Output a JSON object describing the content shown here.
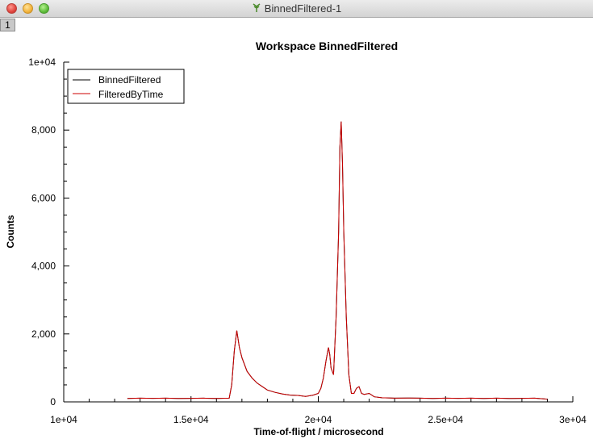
{
  "window": {
    "title": "BinnedFiltered-1",
    "tab_label": "1",
    "icon": "mantid-plot-icon"
  },
  "colors": {
    "binned": "#000000",
    "filtered": "#cc0000"
  },
  "chart_data": {
    "type": "line",
    "title": "Workspace BinnedFiltered",
    "xlabel": "Time-of-flight / microsecond",
    "ylabel": "Counts",
    "xlim": [
      10000,
      30000
    ],
    "ylim": [
      0,
      10000
    ],
    "xticks": [
      {
        "value": 10000,
        "label": "1e+04"
      },
      {
        "value": 15000,
        "label": "1.5e+04"
      },
      {
        "value": 20000,
        "label": "2e+04"
      },
      {
        "value": 25000,
        "label": "2.5e+04"
      },
      {
        "value": 30000,
        "label": "3e+04"
      }
    ],
    "yticks": [
      {
        "value": 0,
        "label": "0"
      },
      {
        "value": 2000,
        "label": "2,000"
      },
      {
        "value": 4000,
        "label": "4,000"
      },
      {
        "value": 6000,
        "label": "6,000"
      },
      {
        "value": 8000,
        "label": "8,000"
      },
      {
        "value": 10000,
        "label": "1e+04"
      }
    ],
    "grid": false,
    "legend": "top-left",
    "series": [
      {
        "name": "BinnedFiltered",
        "color": "#000000",
        "x": [
          12500,
          13000,
          13500,
          14000,
          14500,
          15000,
          15500,
          16000,
          16500,
          16600,
          16700,
          16800,
          16900,
          17000,
          17200,
          17400,
          17600,
          17800,
          18000,
          18300,
          18600,
          18900,
          19200,
          19500,
          19800,
          20000,
          20100,
          20200,
          20300,
          20400,
          20450,
          20500,
          20600,
          20700,
          20800,
          20850,
          20900,
          20950,
          21000,
          21100,
          21200,
          21300,
          21400,
          21500,
          21600,
          21700,
          21800,
          22000,
          22200,
          22500,
          23000,
          23500,
          24000,
          24500,
          25000,
          25500,
          26000,
          26500,
          27000,
          27500,
          28000,
          28500,
          29000
        ],
        "y": [
          100,
          110,
          105,
          110,
          100,
          105,
          110,
          100,
          110,
          500,
          1500,
          2100,
          1600,
          1300,
          900,
          700,
          550,
          450,
          350,
          280,
          230,
          200,
          190,
          160,
          200,
          250,
          400,
          700,
          1200,
          1600,
          1400,
          1000,
          800,
          2500,
          5000,
          7500,
          8250,
          7000,
          5000,
          2500,
          800,
          250,
          250,
          400,
          450,
          250,
          220,
          250,
          150,
          120,
          110,
          115,
          110,
          100,
          110,
          105,
          110,
          100,
          110,
          100,
          105,
          110,
          80
        ]
      },
      {
        "name": "FilteredByTime",
        "color": "#cc0000",
        "x": [
          12500,
          13000,
          13500,
          14000,
          14500,
          15000,
          15500,
          16000,
          16500,
          16600,
          16700,
          16800,
          16900,
          17000,
          17200,
          17400,
          17600,
          17800,
          18000,
          18300,
          18600,
          18900,
          19200,
          19500,
          19800,
          20000,
          20100,
          20200,
          20300,
          20400,
          20450,
          20500,
          20600,
          20700,
          20800,
          20850,
          20900,
          20950,
          21000,
          21100,
          21200,
          21300,
          21400,
          21500,
          21600,
          21700,
          21800,
          22000,
          22200,
          22500,
          23000,
          23500,
          24000,
          24500,
          25000,
          25500,
          26000,
          26500,
          27000,
          27500,
          28000,
          28500,
          29000
        ],
        "y": [
          100,
          110,
          105,
          110,
          100,
          105,
          110,
          100,
          110,
          500,
          1500,
          2100,
          1600,
          1300,
          900,
          700,
          550,
          450,
          350,
          280,
          230,
          200,
          190,
          160,
          200,
          250,
          400,
          700,
          1200,
          1600,
          1400,
          1000,
          800,
          2500,
          5000,
          7500,
          8250,
          7000,
          5000,
          2500,
          800,
          250,
          250,
          400,
          450,
          250,
          220,
          250,
          150,
          120,
          110,
          115,
          110,
          100,
          110,
          105,
          110,
          100,
          110,
          100,
          105,
          110,
          80
        ]
      }
    ]
  }
}
